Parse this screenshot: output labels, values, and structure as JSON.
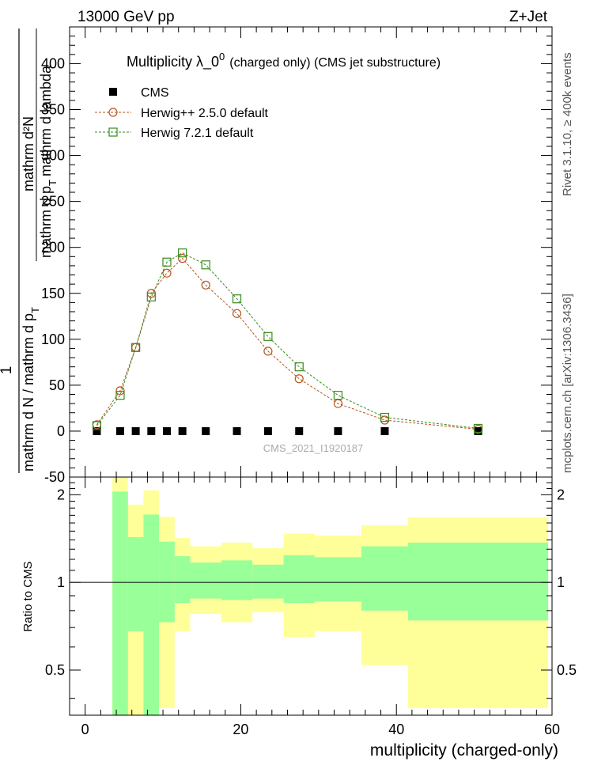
{
  "header": {
    "left": "13000 GeV pp",
    "right": "Z+Jet"
  },
  "side_labels": {
    "rivet": "Rivet 3.1.10, ≥ 400k events",
    "mcplots": "mcplots.cern.ch [arXiv:1306.3436]"
  },
  "chart_data": [
    {
      "type": "scatter",
      "panel": "main",
      "title": "Multiplicity  λ_0",
      "title_superscript": "0",
      "title_suffix": "(charged only) (CMS jet substructure)",
      "watermark": "CMS_2021_I1920187",
      "ylabel": {
        "numerator": "1",
        "line1": "mathrm d N / mathrm d p",
        "sub1": "T",
        "line2": "mathrm d²N",
        "line3": "mathrm d p",
        "sub2": "T",
        "line4": "mathrm d lambda"
      },
      "xlabel": "multiplicity (charged-only)",
      "xlim": [
        -2,
        60
      ],
      "ylim": [
        -50,
        440
      ],
      "xticks": [
        0,
        20,
        40,
        60
      ],
      "yticks": [
        -50,
        0,
        50,
        100,
        150,
        200,
        250,
        300,
        350,
        400
      ],
      "legend": [
        {
          "label": "CMS",
          "marker": "filled-square",
          "color": "#000000"
        },
        {
          "label": "Herwig++ 2.5.0 default",
          "marker": "open-circle",
          "color": "#b5561f"
        },
        {
          "label": "Herwig 7.2.1 default",
          "marker": "open-square",
          "color": "#3a8a1f"
        }
      ],
      "series": [
        {
          "name": "CMS",
          "x": [
            1.5,
            4.5,
            6.5,
            8.5,
            10.5,
            12.5,
            15.5,
            19.5,
            23.5,
            27.5,
            32.5,
            38.5,
            50.5
          ],
          "values": [
            0,
            0,
            0,
            0,
            0,
            0,
            0,
            0,
            0,
            0,
            0,
            0,
            0
          ]
        },
        {
          "name": "Herwig++ 2.5.0 default",
          "x": [
            1.5,
            4.5,
            6.5,
            8.5,
            10.5,
            12.5,
            15.5,
            19.5,
            23.5,
            27.5,
            32.5,
            38.5,
            50.5
          ],
          "values": [
            7,
            44,
            91,
            150,
            172,
            188,
            159,
            128,
            87,
            57,
            30,
            12,
            2
          ]
        },
        {
          "name": "Herwig 7.2.1 default",
          "x": [
            1.5,
            4.5,
            6.5,
            8.5,
            10.5,
            12.5,
            15.5,
            19.5,
            23.5,
            27.5,
            32.5,
            38.5,
            50.5
          ],
          "values": [
            6,
            39,
            91,
            146,
            184,
            194,
            181,
            144,
            103,
            70,
            39,
            15,
            3
          ]
        }
      ]
    },
    {
      "type": "area",
      "panel": "ratio",
      "ylabel": "Ratio to CMS",
      "ylim": [
        0.35,
        2.3
      ],
      "yticks": [
        0.5,
        1,
        2
      ],
      "ytick_labels": [
        "0.5",
        "1",
        "2"
      ],
      "reference_line": 1,
      "bands": [
        {
          "x0": 3.5,
          "x1": 5.5,
          "green": [
            0.35,
            2.05
          ],
          "yellow": [
            0.35,
            2.3
          ]
        },
        {
          "x0": 5.5,
          "x1": 7.5,
          "green": [
            0.68,
            1.43
          ],
          "yellow": [
            0.35,
            1.85
          ]
        },
        {
          "x0": 7.5,
          "x1": 9.5,
          "green": [
            0.35,
            1.71
          ],
          "yellow": [
            0.35,
            2.07
          ]
        },
        {
          "x0": 9.5,
          "x1": 11.5,
          "green": [
            0.73,
            1.38
          ],
          "yellow": [
            0.37,
            1.68
          ]
        },
        {
          "x0": 11.5,
          "x1": 13.5,
          "green": [
            0.85,
            1.23
          ],
          "yellow": [
            0.68,
            1.42
          ]
        },
        {
          "x0": 13.5,
          "x1": 17.5,
          "green": [
            0.88,
            1.17
          ],
          "yellow": [
            0.78,
            1.33
          ]
        },
        {
          "x0": 17.5,
          "x1": 21.5,
          "green": [
            0.87,
            1.19
          ],
          "yellow": [
            0.73,
            1.37
          ]
        },
        {
          "x0": 21.5,
          "x1": 25.5,
          "green": [
            0.88,
            1.15
          ],
          "yellow": [
            0.79,
            1.31
          ]
        },
        {
          "x0": 25.5,
          "x1": 29.5,
          "green": [
            0.85,
            1.24
          ],
          "yellow": [
            0.65,
            1.47
          ]
        },
        {
          "x0": 29.5,
          "x1": 35.5,
          "green": [
            0.86,
            1.22
          ],
          "yellow": [
            0.68,
            1.45
          ]
        },
        {
          "x0": 35.5,
          "x1": 41.5,
          "green": [
            0.8,
            1.33
          ],
          "yellow": [
            0.52,
            1.57
          ]
        },
        {
          "x0": 41.5,
          "x1": 59.5,
          "green": [
            0.74,
            1.37
          ],
          "yellow": [
            0.37,
            1.67
          ]
        }
      ]
    }
  ]
}
